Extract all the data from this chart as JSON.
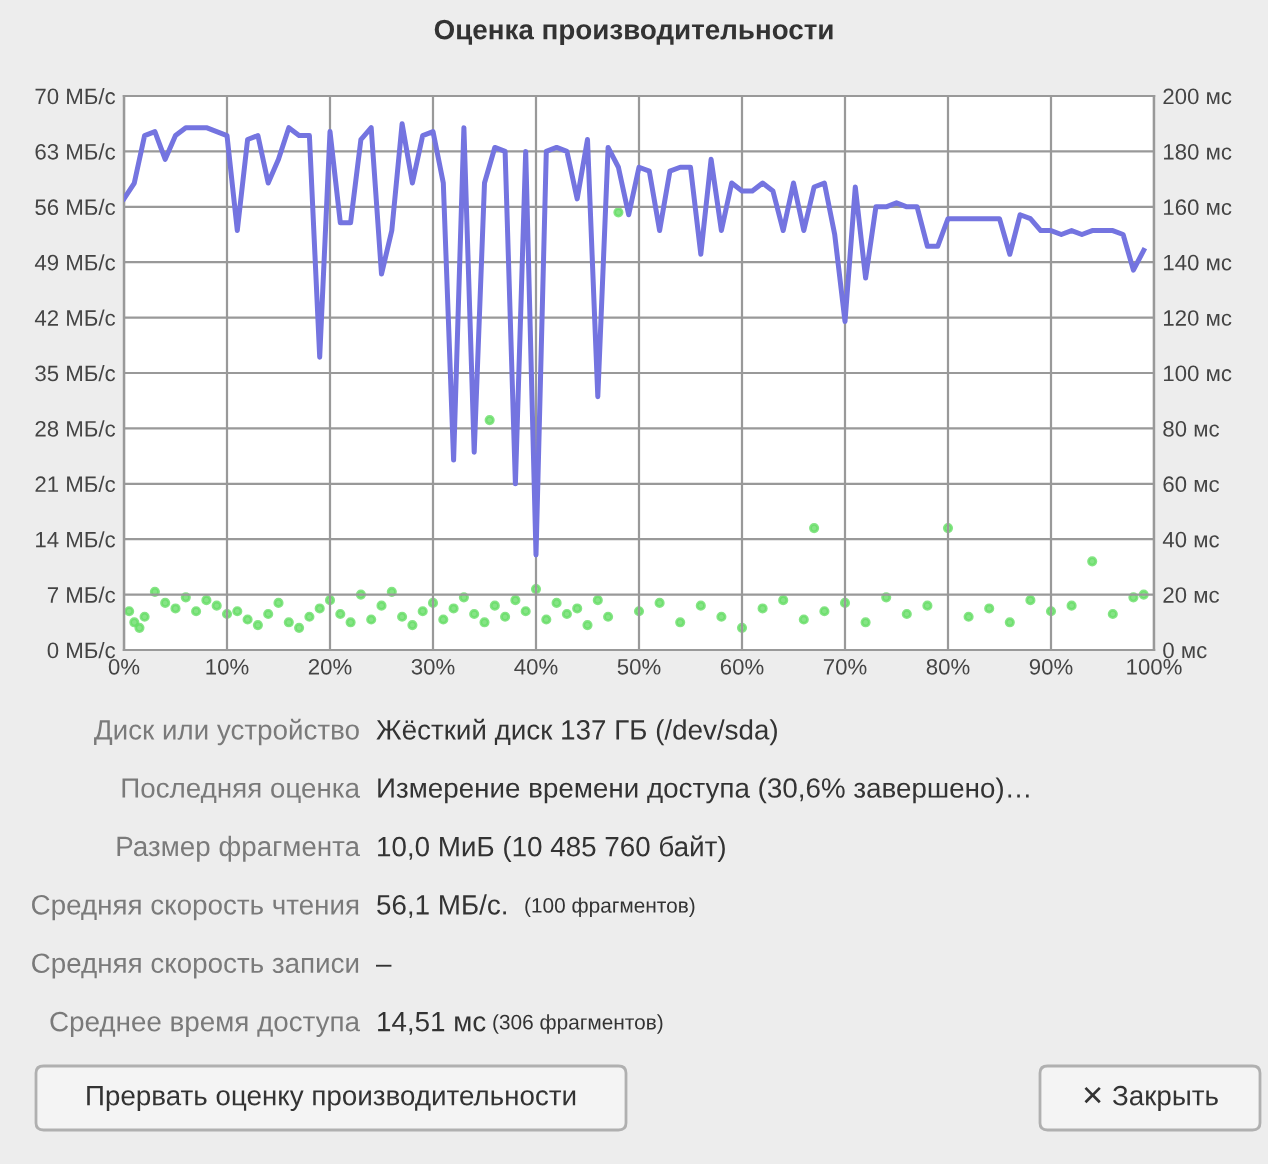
{
  "chart_data": {
    "type": "line",
    "title": "Оценка производительности",
    "xlim": [
      0,
      100
    ],
    "xticks": [
      {
        "value": 0,
        "label": "0%"
      },
      {
        "value": 10,
        "label": "10%"
      },
      {
        "value": 20,
        "label": "20%"
      },
      {
        "value": 30,
        "label": "30%"
      },
      {
        "value": 40,
        "label": "40%"
      },
      {
        "value": 50,
        "label": "50%"
      },
      {
        "value": 60,
        "label": "60%"
      },
      {
        "value": 70,
        "label": "70%"
      },
      {
        "value": 80,
        "label": "80%"
      },
      {
        "value": 90,
        "label": "90%"
      },
      {
        "value": 100,
        "label": "100%"
      }
    ],
    "ylim": [
      0,
      70
    ],
    "yticks": [
      {
        "value": 0,
        "label": "0 МБ/с"
      },
      {
        "value": 7,
        "label": "7 МБ/с"
      },
      {
        "value": 14,
        "label": "14 МБ/с"
      },
      {
        "value": 21,
        "label": "21 МБ/с"
      },
      {
        "value": 28,
        "label": "28 МБ/с"
      },
      {
        "value": 35,
        "label": "35 МБ/с"
      },
      {
        "value": 42,
        "label": "42 МБ/с"
      },
      {
        "value": 49,
        "label": "49 МБ/с"
      },
      {
        "value": 56,
        "label": "56 МБ/с"
      },
      {
        "value": 63,
        "label": "63 МБ/с"
      },
      {
        "value": 70,
        "label": "70 МБ/с"
      }
    ],
    "y2lim": [
      0,
      200
    ],
    "y2ticks": [
      {
        "value": 0,
        "label": "0 мс"
      },
      {
        "value": 20,
        "label": "20 мс"
      },
      {
        "value": 40,
        "label": "40 мс"
      },
      {
        "value": 60,
        "label": "60 мс"
      },
      {
        "value": 80,
        "label": "80 мс"
      },
      {
        "value": 100,
        "label": "100 мс"
      },
      {
        "value": 120,
        "label": "120 мс"
      },
      {
        "value": 140,
        "label": "140 мс"
      },
      {
        "value": 160,
        "label": "160 мс"
      },
      {
        "value": 180,
        "label": "180 мс"
      },
      {
        "value": 200,
        "label": "200 мс"
      }
    ],
    "grid": true,
    "series": [
      {
        "color": "#7474e0",
        "x": [
          0,
          1,
          2,
          3,
          4,
          5,
          6,
          7,
          8,
          9,
          10,
          11,
          12,
          13,
          14,
          15,
          16,
          17,
          18,
          19,
          20,
          21,
          22,
          23,
          24,
          25,
          26,
          27,
          28,
          29,
          30,
          31,
          32,
          33,
          34,
          35,
          36,
          37,
          38,
          39,
          40,
          41,
          42,
          43,
          44,
          45,
          46,
          47,
          48,
          49,
          50,
          51,
          52,
          53,
          54,
          55,
          56,
          57,
          58,
          59,
          60,
          61,
          62,
          63,
          64,
          65,
          66,
          67,
          68,
          69,
          70,
          71,
          72,
          73,
          74,
          75,
          76,
          77,
          78,
          79,
          80,
          81,
          82,
          83,
          84,
          85,
          86,
          87,
          88,
          89,
          90,
          91,
          92,
          93,
          94,
          95,
          96,
          97,
          98,
          99
        ],
        "values": [
          57,
          59,
          65,
          65.5,
          62,
          65,
          66,
          66,
          66,
          65.5,
          65,
          53,
          64.5,
          65,
          59,
          62,
          66,
          65,
          65,
          37,
          65.5,
          54,
          54,
          64.5,
          66,
          47.5,
          53,
          66.5,
          59,
          65,
          65.5,
          59,
          24,
          66,
          25,
          59,
          63.5,
          63,
          21,
          63,
          12,
          63,
          63.5,
          63,
          57,
          64.5,
          32,
          63.5,
          61,
          55,
          61,
          60.5,
          53,
          60.5,
          61,
          61,
          50,
          62,
          53,
          59,
          58,
          58,
          59,
          58,
          53,
          59,
          53,
          58.5,
          59,
          52.5,
          41.5,
          58.5,
          47,
          56,
          56,
          56.5,
          56,
          56,
          51,
          51,
          54.5,
          54.5,
          54.5,
          54.5,
          54.5,
          54.5,
          50,
          55,
          54.5,
          53,
          53,
          52.5,
          53,
          52.5,
          53,
          53,
          53,
          52.5,
          48,
          50.5
        ]
      },
      {
        "type": "scatter",
        "axis": "y2",
        "color": "#66dd66",
        "marker": "circle",
        "x": [
          0.5,
          1,
          1.5,
          2,
          3,
          4,
          5,
          6,
          7,
          8,
          9,
          10,
          11,
          12,
          13,
          14,
          15,
          16,
          17,
          18,
          19,
          20,
          21,
          22,
          23,
          24,
          25,
          26,
          27,
          28,
          29,
          30,
          31,
          32,
          33,
          34,
          35,
          35.5,
          36,
          37,
          38,
          39,
          40,
          41,
          42,
          43,
          44,
          45,
          46,
          47,
          48,
          50,
          52,
          54,
          56,
          58,
          60,
          62,
          64,
          66,
          67,
          68,
          70,
          72,
          74,
          76,
          78,
          80,
          82,
          84,
          86,
          88,
          90,
          92,
          94,
          96,
          98,
          99
        ],
        "values": [
          14,
          10,
          8,
          12,
          21,
          17,
          15,
          19,
          14,
          18,
          16,
          13,
          14,
          11,
          9,
          13,
          17,
          10,
          8,
          12,
          15,
          18,
          13,
          10,
          20,
          11,
          16,
          21,
          12,
          9,
          14,
          17,
          11,
          15,
          19,
          13,
          10,
          83,
          16,
          12,
          18,
          14,
          22,
          11,
          17,
          13,
          15,
          9,
          18,
          12,
          158,
          14,
          17,
          10,
          16,
          12,
          8,
          15,
          18,
          11,
          44,
          14,
          17,
          10,
          19,
          13,
          16,
          44,
          12,
          15,
          10,
          18,
          14,
          16,
          32,
          13,
          19,
          20
        ]
      }
    ],
    "annotations": [
      "Диск или устройство",
      "Жёсткий диск 137 ГБ (/dev/sda)",
      "Последняя оценка",
      "Измерение времени доступа (30,6% завершено)…",
      "Размер фрагмента",
      "10,0 МиБ (10 485 760 байт)",
      "Средняя скорость чтения",
      "56,1 МБ/с.",
      "Средняя скорость записи",
      "–",
      "Среднее время доступа",
      "14,51 мс",
      "(100 фрагментов)",
      "(306 фрагментов)",
      "Прервать оценку производительности",
      "✕ Закрыть"
    ]
  }
}
